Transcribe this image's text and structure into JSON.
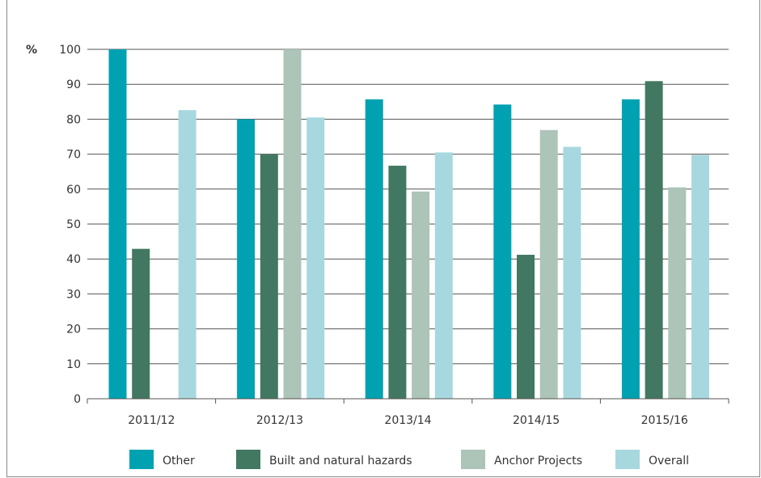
{
  "chart_data": {
    "type": "bar",
    "ylabel": "%",
    "ylim": [
      0,
      100
    ],
    "yticks": [
      0,
      10,
      20,
      30,
      40,
      50,
      60,
      70,
      80,
      90,
      100
    ],
    "grid": true,
    "legend_position": "bottom",
    "categories": [
      "2011/12",
      "2012/13",
      "2013/14",
      "2014/15",
      "2015/16"
    ],
    "series": [
      {
        "name": "Other",
        "color": "#00a2b1",
        "values": [
          100,
          80,
          85.7,
          84.2,
          85.7
        ]
      },
      {
        "name": "Built and natural hazards",
        "color": "#427861",
        "values": [
          42.9,
          70,
          66.7,
          41.2,
          90.9
        ]
      },
      {
        "name": "Anchor Projects",
        "color": "#adc4b8",
        "values": [
          null,
          100,
          59.3,
          76.9,
          60.5
        ]
      },
      {
        "name": "Overall",
        "color": "#a8d8df",
        "values": [
          82.6,
          80.5,
          70.5,
          72.1,
          69.8
        ]
      }
    ]
  }
}
